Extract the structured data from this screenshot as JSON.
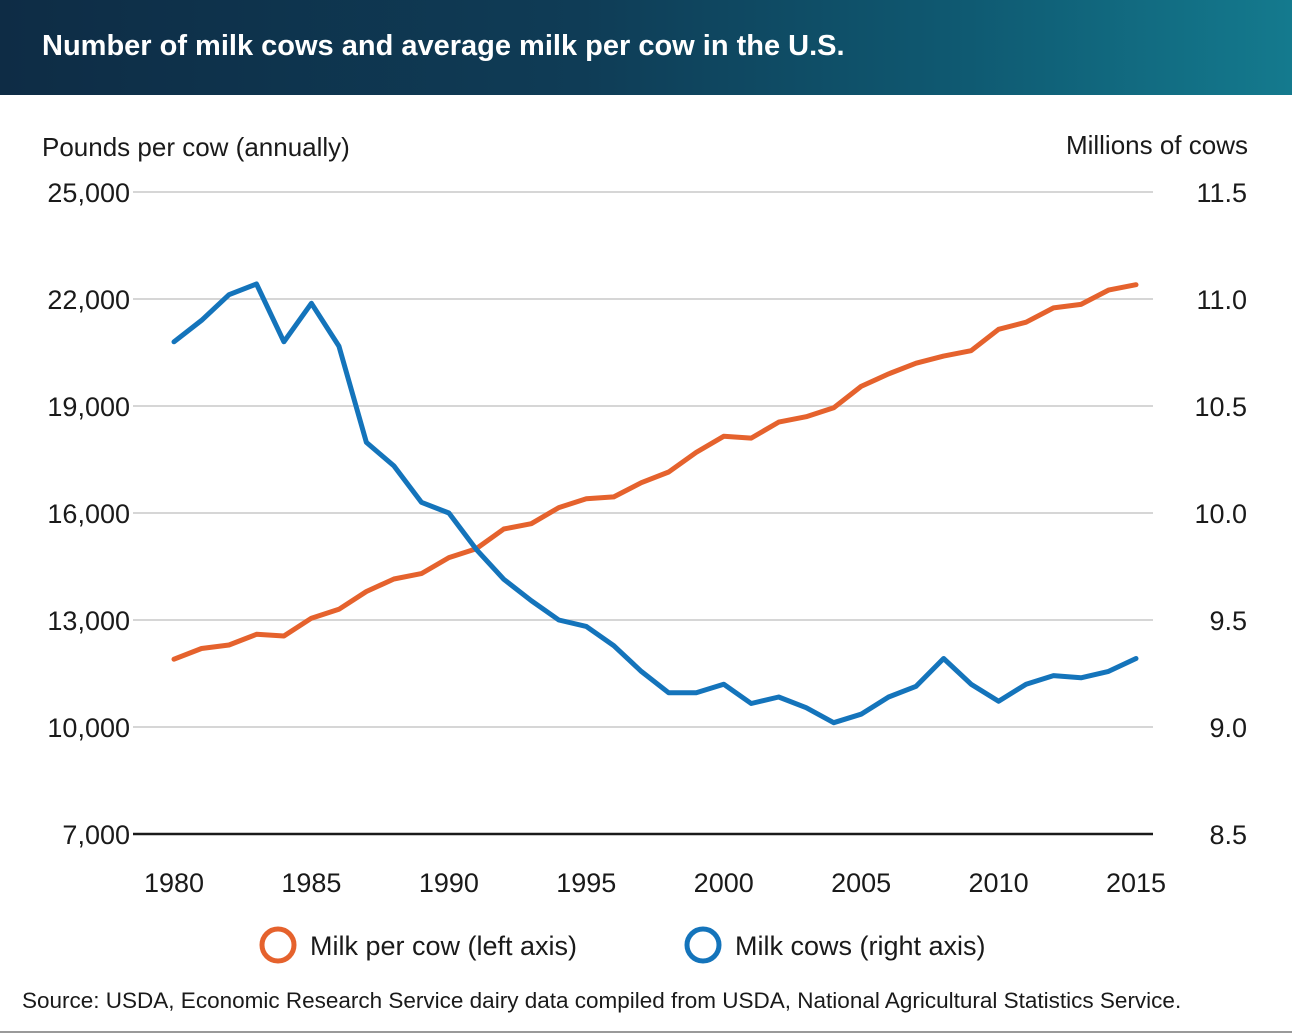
{
  "header": {
    "title": "Number of milk cows and average milk per cow in the U.S."
  },
  "colors": {
    "milk_per_cow": "#e5622d",
    "milk_cows": "#1474bb",
    "grid": "#c8c8c8",
    "axis": "#1a1a1a"
  },
  "chart_data": {
    "type": "line",
    "title": "Number of milk cows and average milk per cow in the U.S.",
    "ylabel_left": "Pounds per cow (annually)",
    "ylabel_right": "Millions of cows",
    "ylim_left": [
      7000,
      25000
    ],
    "ylim_right": [
      8.5,
      11.5
    ],
    "yticks_left": [
      "7,000",
      "10,000",
      "13,000",
      "16,000",
      "19,000",
      "22,000",
      "25,000"
    ],
    "yticks_right": [
      "8.5",
      "9.0",
      "9.5",
      "10.0",
      "10.5",
      "11.0",
      "11.5"
    ],
    "xlim": [
      1980,
      2015
    ],
    "xticks": [
      "1980",
      "1985",
      "1990",
      "1995",
      "2000",
      "2005",
      "2010",
      "2015"
    ],
    "grid": true,
    "legend_position": "bottom",
    "x": [
      1980,
      1981,
      1982,
      1983,
      1984,
      1985,
      1986,
      1987,
      1988,
      1989,
      1990,
      1991,
      1992,
      1993,
      1994,
      1995,
      1996,
      1997,
      1998,
      1999,
      2000,
      2001,
      2002,
      2003,
      2004,
      2005,
      2006,
      2007,
      2008,
      2009,
      2010,
      2011,
      2012,
      2013,
      2014,
      2015
    ],
    "series": [
      {
        "name": "Milk per cow (left axis)",
        "axis": "left",
        "values": [
          11900,
          12200,
          12300,
          12600,
          12550,
          13050,
          13300,
          13800,
          14150,
          14300,
          14750,
          15000,
          15550,
          15700,
          16150,
          16400,
          16450,
          16850,
          17150,
          17700,
          18150,
          18100,
          18550,
          18700,
          18950,
          19550,
          19900,
          20200,
          20400,
          20550,
          21150,
          21350,
          21750,
          21850,
          22250,
          22400
        ]
      },
      {
        "name": "Milk cows (right axis)",
        "axis": "right",
        "values": [
          10.8,
          10.9,
          11.02,
          11.07,
          10.8,
          10.98,
          10.78,
          10.33,
          10.22,
          10.05,
          10.0,
          9.83,
          9.69,
          9.59,
          9.5,
          9.47,
          9.38,
          9.26,
          9.16,
          9.16,
          9.2,
          9.11,
          9.14,
          9.09,
          9.02,
          9.06,
          9.14,
          9.19,
          9.32,
          9.2,
          9.12,
          9.2,
          9.24,
          9.23,
          9.26,
          9.32
        ]
      }
    ]
  },
  "legend": {
    "milk_per_cow": "Milk per cow (left axis)",
    "milk_cows": "Milk cows (right axis)"
  },
  "footer": {
    "source": "Source: USDA, Economic Research Service dairy data compiled from USDA, National Agricultural Statistics Service."
  }
}
